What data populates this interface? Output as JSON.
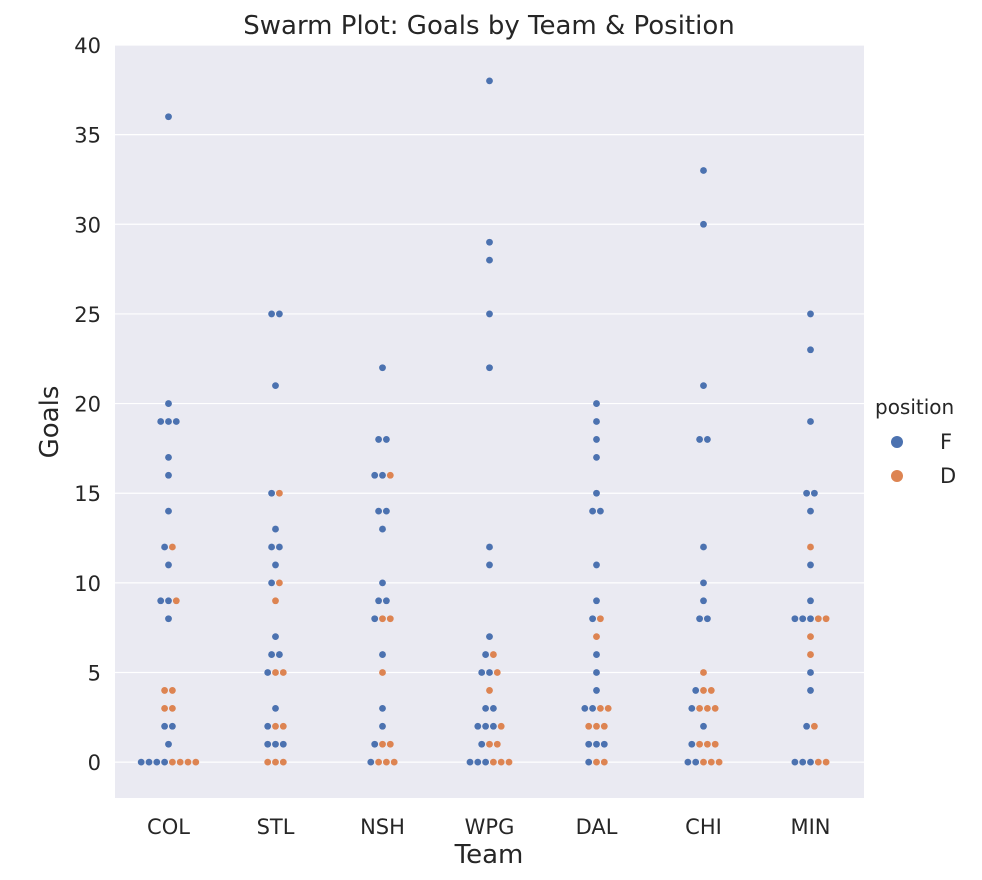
{
  "chart_data": {
    "type": "scatter",
    "subtype": "swarm",
    "title": "Swarm Plot: Goals by Team & Position",
    "xlabel": "Team",
    "ylabel": "Goals",
    "ylim": [
      -2,
      40
    ],
    "yticks": [
      0,
      5,
      10,
      15,
      20,
      25,
      30,
      35,
      40
    ],
    "grid": true,
    "legend": {
      "title": "position",
      "placement": "right"
    },
    "categories": [
      "COL",
      "STL",
      "NSH",
      "WPG",
      "DAL",
      "CHI",
      "MIN"
    ],
    "series": [
      {
        "name": "F",
        "color": "#4c72b0",
        "points": {
          "COL": [
            36,
            20,
            19,
            19,
            19,
            17,
            16,
            14,
            12,
            11,
            9,
            9,
            8,
            2,
            2,
            1,
            0,
            0,
            0,
            0
          ],
          "STL": [
            25,
            25,
            21,
            15,
            13,
            12,
            12,
            11,
            10,
            7,
            6,
            6,
            5,
            3,
            2,
            1,
            1,
            1
          ],
          "NSH": [
            22,
            18,
            18,
            16,
            16,
            14,
            14,
            13,
            10,
            9,
            9,
            8,
            6,
            3,
            2,
            1,
            0
          ],
          "WPG": [
            38,
            29,
            28,
            25,
            22,
            12,
            11,
            7,
            6,
            5,
            5,
            3,
            3,
            2,
            2,
            2,
            1,
            0,
            0,
            0
          ],
          "DAL": [
            20,
            19,
            18,
            17,
            15,
            14,
            14,
            11,
            9,
            8,
            6,
            5,
            4,
            3,
            3,
            1,
            1,
            1,
            0
          ],
          "CHI": [
            33,
            30,
            21,
            18,
            18,
            12,
            10,
            9,
            8,
            8,
            4,
            3,
            2,
            1,
            0,
            0
          ],
          "MIN": [
            25,
            23,
            19,
            15,
            15,
            14,
            11,
            9,
            8,
            8,
            8,
            5,
            4,
            2,
            0,
            0,
            0
          ]
        }
      },
      {
        "name": "D",
        "color": "#dd8452",
        "points": {
          "COL": [
            12,
            9,
            4,
            4,
            3,
            3,
            0,
            0,
            0,
            0
          ],
          "STL": [
            15,
            10,
            9,
            5,
            5,
            2,
            2,
            0,
            0,
            0
          ],
          "NSH": [
            16,
            8,
            8,
            5,
            1,
            1,
            0,
            0,
            0
          ],
          "WPG": [
            6,
            5,
            4,
            2,
            1,
            1,
            0,
            0,
            0
          ],
          "DAL": [
            8,
            7,
            3,
            3,
            2,
            2,
            2,
            0,
            0
          ],
          "CHI": [
            5,
            4,
            4,
            3,
            3,
            3,
            1,
            1,
            1,
            0,
            0,
            0
          ],
          "MIN": [
            12,
            8,
            8,
            7,
            6,
            2,
            0,
            0
          ]
        }
      }
    ]
  }
}
